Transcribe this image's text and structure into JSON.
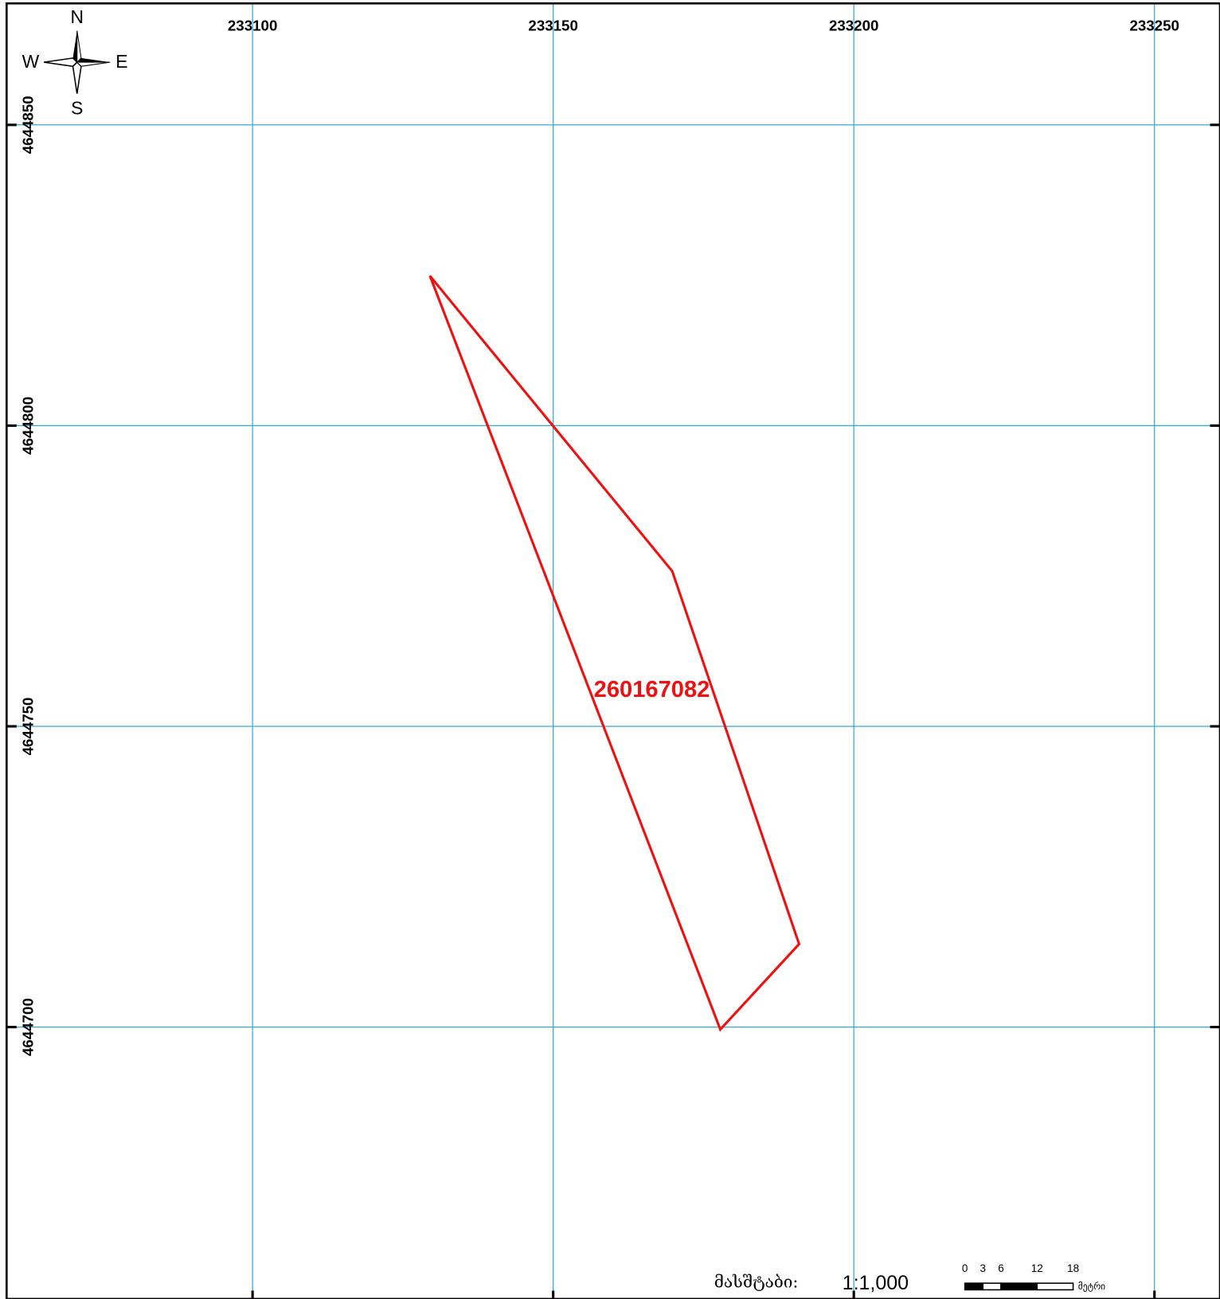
{
  "map": {
    "xlim": [
      233059.1,
      233260.9
    ],
    "ylim": [
      4644654.8,
      4644870.2
    ],
    "xticks": [
      233100,
      233150,
      233200,
      233250
    ],
    "yticks": [
      4644850,
      4644800,
      4644750,
      4644700
    ],
    "grid_color": "#33aadd",
    "compass": {
      "n": "N",
      "e": "E",
      "s": "S",
      "w": "W"
    },
    "parcel": {
      "label": "260167082",
      "color": "#ee1111",
      "vertices": [
        [
          233129.5,
          4644824.9
        ],
        [
          233169.8,
          4644775.8
        ],
        [
          233190.9,
          4644713.8
        ],
        [
          233177.8,
          4644699.6
        ]
      ]
    },
    "scale": {
      "label": "მასშტაბი:",
      "ratio": "1:1,000",
      "unit": "მეტრი",
      "ticks": [
        0,
        3,
        6,
        12,
        18
      ]
    }
  }
}
